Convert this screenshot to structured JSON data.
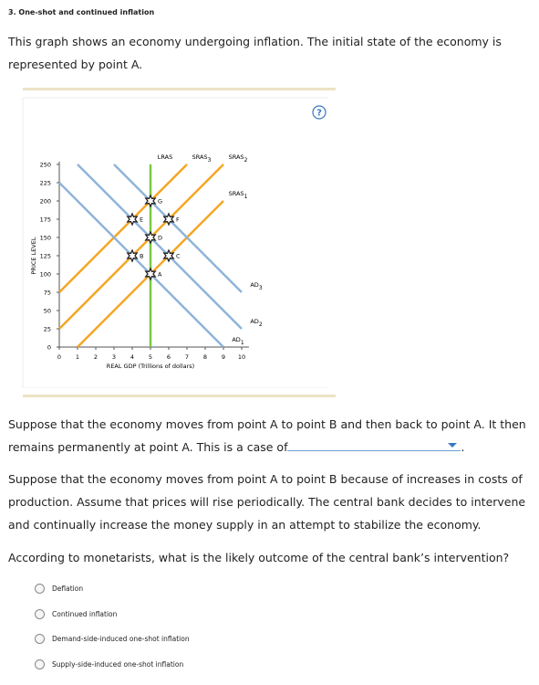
{
  "header": "3. One-shot and continued inflation",
  "intro": "This graph shows an economy undergoing inflation. The initial state of the economy is represented by point A.",
  "help": "?",
  "chart_data": {
    "type": "line",
    "xlabel": "REAL GDP (Trillions of dollars)",
    "ylabel": "PRICE LEVEL",
    "xlim": [
      0,
      10
    ],
    "ylim": [
      0,
      250
    ],
    "xticks": [
      0,
      1,
      2,
      3,
      4,
      5,
      6,
      7,
      8,
      9,
      10
    ],
    "yticks": [
      0,
      25,
      50,
      75,
      100,
      125,
      150,
      175,
      200,
      225,
      250
    ],
    "series": [
      {
        "name": "LRAS",
        "color": "#7ac943",
        "x": [
          5,
          5
        ],
        "values": [
          0,
          250
        ]
      },
      {
        "name": "SRAS",
        "subscript": "1",
        "color": "#f5a623",
        "x": [
          1,
          9
        ],
        "values": [
          0,
          200
        ]
      },
      {
        "name": "SRAS",
        "subscript": "2",
        "color": "#f5a623",
        "x": [
          0,
          9
        ],
        "values": [
          25,
          250
        ]
      },
      {
        "name": "SRAS",
        "subscript": "3",
        "color": "#f5a623",
        "x": [
          0,
          7
        ],
        "values": [
          75,
          250
        ]
      },
      {
        "name": "AD",
        "subscript": "1",
        "color": "#8fb4d9",
        "x": [
          0,
          9
        ],
        "values": [
          225,
          0
        ]
      },
      {
        "name": "AD",
        "subscript": "2",
        "color": "#8fb4d9",
        "x": [
          1,
          10
        ],
        "values": [
          250,
          25
        ]
      },
      {
        "name": "AD",
        "subscript": "3",
        "color": "#8fb4d9",
        "x": [
          3,
          10
        ],
        "values": [
          250,
          75
        ]
      }
    ],
    "points": {
      "labels": [
        "A",
        "B",
        "C",
        "D",
        "E",
        "F",
        "G"
      ],
      "x": [
        5,
        4,
        6,
        5,
        4,
        6,
        5
      ],
      "values": [
        100,
        125,
        125,
        150,
        175,
        175,
        200
      ]
    }
  },
  "question1": [
    "Suppose that the economy moves from point A to point B and then back to point A. It then remains permanently at point A. This is a case of",
    "."
  ],
  "paragraph2": "Suppose that the economy moves from point A to point B because of increases in costs of production. Assume that prices will rise periodically. The central bank decides to intervene and continually increase the money supply in an attempt to stabilize the economy.",
  "question2": "According to monetarists, what is the likely outcome of the central bank’s intervention?",
  "options": [
    "Deflation",
    "Continued inflation",
    "Demand-side-induced one-shot inflation",
    "Supply-side-induced one-shot inflation"
  ]
}
